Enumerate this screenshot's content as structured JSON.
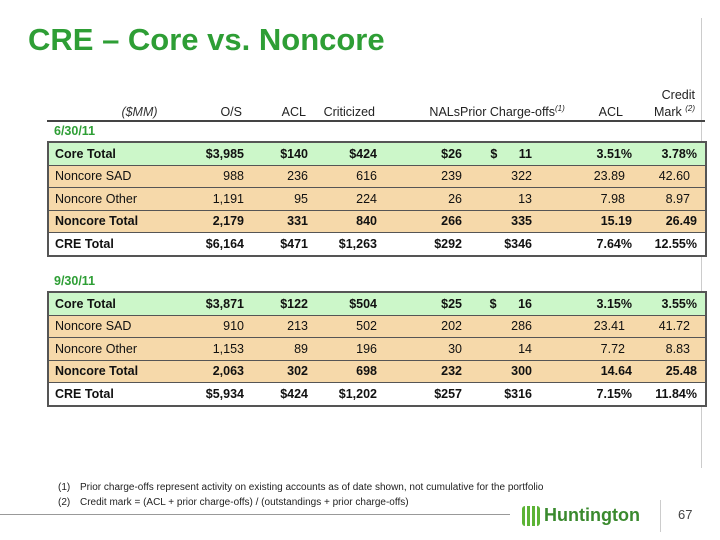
{
  "title": "CRE – Core vs. Noncore",
  "header": {
    "units": "($MM)",
    "cols": [
      "O/S",
      "ACL",
      "Criticized",
      "NALs",
      "Prior Charge-offs",
      "ACL",
      "Credit",
      "Mark"
    ],
    "fn1": "(1)",
    "fn2": "(2)"
  },
  "tables": [
    {
      "date": "6/30/11",
      "rows": [
        [
          "Core Total",
          "$3,985",
          "$140",
          "$424",
          "$26",
          "$ 11",
          "3.51%",
          "3.78%"
        ],
        [
          "Noncore SAD",
          "988",
          "236",
          "616",
          "239",
          "322",
          "23.89",
          "42.60"
        ],
        [
          "Noncore Other",
          "1,191",
          "95",
          "224",
          "26",
          "13",
          "7.98",
          "8.97"
        ],
        [
          "Noncore Total",
          "2,179",
          "331",
          "840",
          "266",
          "335",
          "15.19",
          "26.49"
        ],
        [
          "CRE Total",
          "$6,164",
          "$471",
          "$1,263",
          "$292",
          "$346",
          "7.64%",
          "12.55%"
        ]
      ]
    },
    {
      "date": "9/30/11",
      "rows": [
        [
          "Core Total",
          "$3,871",
          "$122",
          "$504",
          "$25",
          "$ 16",
          "3.15%",
          "3.55%"
        ],
        [
          "Noncore SAD",
          "910",
          "213",
          "502",
          "202",
          "286",
          "23.41",
          "41.72"
        ],
        [
          "Noncore Other",
          "1,153",
          "89",
          "196",
          "30",
          "14",
          "7.72",
          "8.83"
        ],
        [
          "Noncore Total",
          "2,063",
          "302",
          "698",
          "232",
          "300",
          "14.64",
          "25.48"
        ],
        [
          "CRE Total",
          "$5,934",
          "$424",
          "$1,202",
          "$257",
          "$316",
          "7.15%",
          "11.84%"
        ]
      ]
    }
  ],
  "footnotes": [
    {
      "num": "(1)",
      "text": "Prior charge-offs represent activity on existing accounts as of date shown, not cumulative for the portfolio"
    },
    {
      "num": "(2)",
      "text": "Credit mark = (ACL + prior charge-offs) / (outstandings + prior charge-offs)"
    }
  ],
  "logo": "Huntington",
  "page": "67"
}
